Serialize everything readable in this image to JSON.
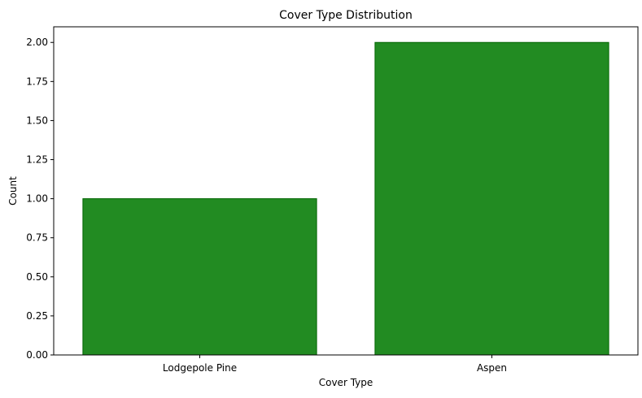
{
  "chart_data": {
    "type": "bar",
    "title": "Cover Type Distribution",
    "xlabel": "Cover Type",
    "ylabel": "Count",
    "categories": [
      "Lodgepole Pine",
      "Aspen"
    ],
    "values": [
      1,
      2
    ],
    "ylim": [
      0,
      2.1
    ],
    "yticks": [
      "0.00",
      "0.25",
      "0.50",
      "0.75",
      "1.00",
      "1.25",
      "1.50",
      "1.75",
      "2.00"
    ],
    "grid": false,
    "bar_color": "#228B22",
    "bar_edge_color": "#006400"
  }
}
